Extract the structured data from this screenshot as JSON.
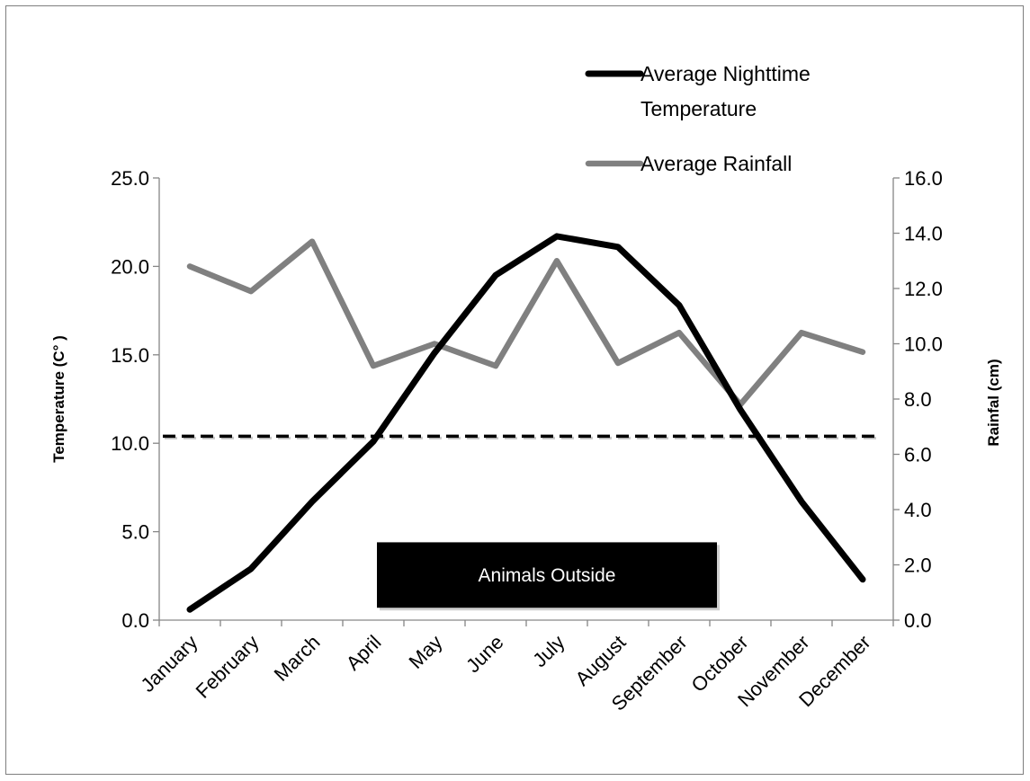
{
  "chart_data": {
    "type": "line",
    "categories": [
      "January",
      "February",
      "March",
      "April",
      "May",
      "June",
      "July",
      "August",
      "September",
      "October",
      "November",
      "December"
    ],
    "series": [
      {
        "name": "Average Nighttime Temperature",
        "name_lines": [
          "Average Nighttime",
          "Temperature"
        ],
        "axis": "left",
        "color": "#000000",
        "values": [
          0.6,
          2.9,
          6.7,
          10.1,
          15.1,
          19.5,
          21.7,
          21.1,
          17.8,
          11.9,
          6.7,
          2.3
        ]
      },
      {
        "name": "Average Rainfall",
        "name_lines": [
          "Average Rainfall"
        ],
        "axis": "right",
        "color": "#808080",
        "values": [
          12.8,
          11.9,
          13.7,
          9.2,
          10.0,
          9.2,
          13.0,
          9.3,
          10.4,
          7.8,
          10.4,
          9.7
        ]
      }
    ],
    "ylabel": "Temperature (C° )",
    "y2label": "Rainfal (cm)",
    "ylim": [
      0,
      25
    ],
    "y2lim": [
      0,
      16
    ],
    "yticks": [
      "0.0",
      "5.0",
      "10.0",
      "15.0",
      "20.0",
      "25.0"
    ],
    "y2ticks": [
      "0.0",
      "2.0",
      "4.0",
      "6.0",
      "8.0",
      "10.0",
      "12.0",
      "14.0",
      "16.0"
    ],
    "threshold": {
      "axis": "left",
      "value": 10.4,
      "style": "dashed",
      "color": "#000000"
    },
    "annotation": {
      "text": "Animals Outside",
      "from_month": "April",
      "to_month": "October",
      "color": "#000000"
    },
    "legend_position": "top-right",
    "grid": false
  }
}
